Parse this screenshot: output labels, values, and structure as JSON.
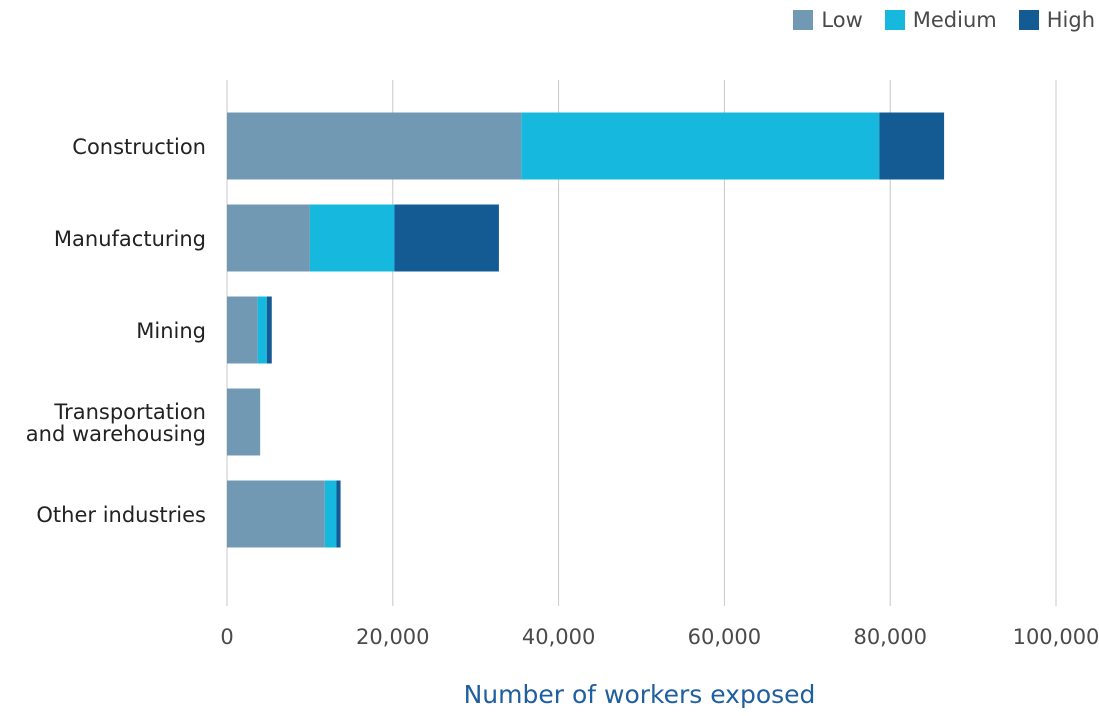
{
  "chart_data": {
    "type": "bar",
    "orientation": "horizontal",
    "stacked": true,
    "title": "",
    "xlabel": "Number of workers exposed",
    "ylabel": "",
    "xlim": [
      0,
      100000
    ],
    "x_ticks": [
      0,
      20000,
      40000,
      60000,
      80000,
      100000
    ],
    "x_tick_labels": [
      "0",
      "20,000",
      "40,000",
      "60,000",
      "80,000",
      "100,000"
    ],
    "grid": "vertical",
    "legend_position": "top-right",
    "categories": [
      [
        "Construction"
      ],
      [
        "Manufacturing"
      ],
      [
        "Mining"
      ],
      [
        "Transportation",
        "and warehousing"
      ],
      [
        "Other industries"
      ]
    ],
    "series": [
      {
        "name": "Low",
        "color": "#7299b3",
        "values": [
          35500,
          10000,
          3700,
          4000,
          11800
        ]
      },
      {
        "name": "Medium",
        "color": "#17b8dd",
        "values": [
          43200,
          10200,
          1100,
          0,
          1400
        ]
      },
      {
        "name": "High",
        "color": "#145b94",
        "values": [
          7800,
          12600,
          600,
          0,
          500
        ]
      }
    ]
  }
}
